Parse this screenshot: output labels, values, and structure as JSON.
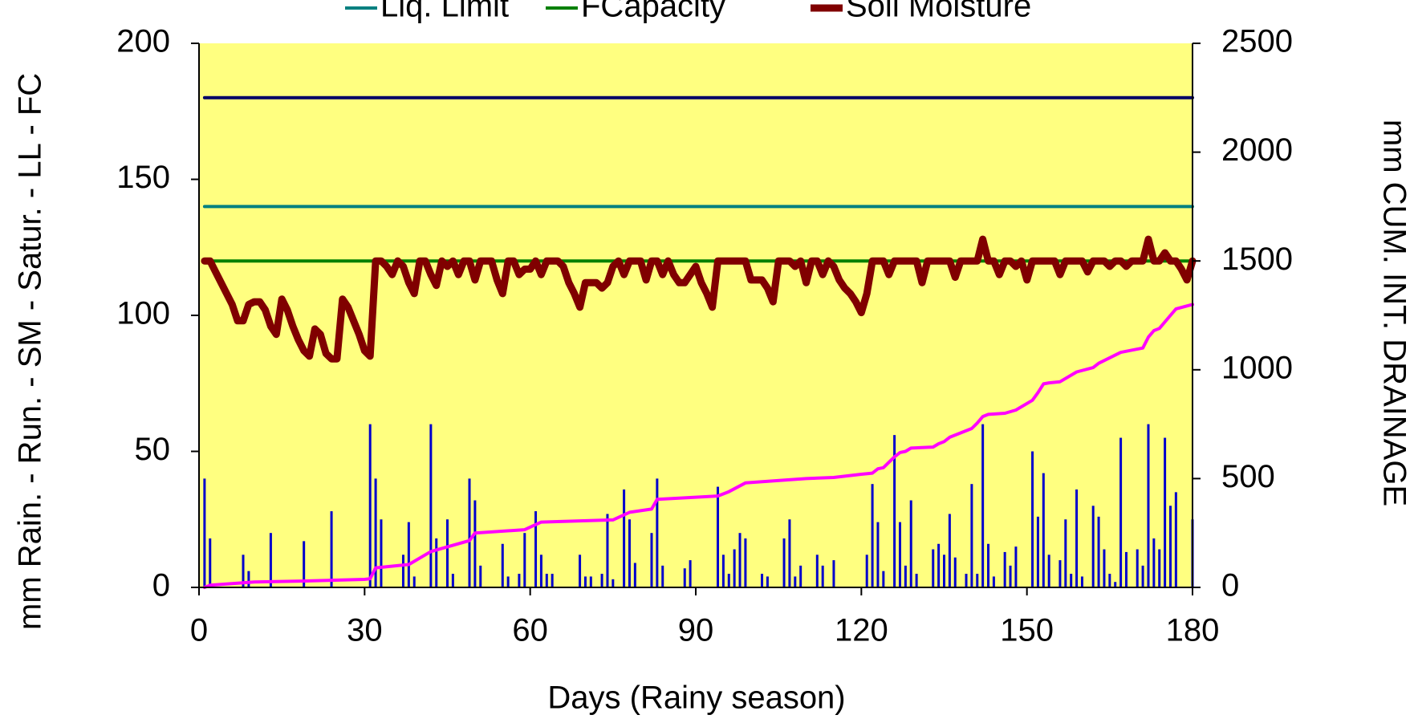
{
  "chart_data": {
    "type": "combo",
    "xlabel": "Days (Rainy season)",
    "ylabel": "mm Rain. - Run. - SM - Satur. - LL - FC",
    "y2label": "mm CUM. INT. DRAINAGE",
    "xlim": [
      0,
      180
    ],
    "xticks": [
      0,
      30,
      60,
      90,
      120,
      150,
      180
    ],
    "ylim": [
      0,
      200
    ],
    "yticks": [
      0,
      50,
      100,
      150,
      200
    ],
    "y2lim": [
      0,
      2500
    ],
    "y2ticks": [
      0,
      500,
      1000,
      1500,
      2000,
      2500
    ],
    "background": "#ffff80",
    "series": [
      {
        "type": "bar",
        "color": "#0000cc",
        "x": [
          1,
          2,
          8,
          9,
          13,
          19,
          24,
          31,
          32,
          33,
          37,
          38,
          39,
          42,
          43,
          45,
          46,
          49,
          50,
          51,
          55,
          56,
          58,
          59,
          61,
          62,
          63,
          64,
          69,
          70,
          71,
          73,
          74,
          75,
          77,
          78,
          79,
          82,
          83,
          84,
          88,
          89,
          94,
          95,
          96,
          97,
          98,
          99,
          102,
          103,
          106,
          107,
          108,
          109,
          112,
          113,
          115,
          121,
          122,
          123,
          124,
          126,
          127,
          128,
          129,
          130,
          133,
          134,
          135,
          136,
          137,
          139,
          140,
          141,
          142,
          143,
          144,
          146,
          147,
          148,
          151,
          152,
          153,
          154,
          156,
          157,
          158,
          159,
          160,
          162,
          163,
          164,
          165,
          166,
          167,
          168,
          170,
          171,
          172,
          173,
          174,
          175,
          176,
          177,
          180
        ],
        "values": [
          40,
          18,
          12,
          6,
          20,
          17,
          28,
          60,
          40,
          25,
          12,
          24,
          4,
          60,
          18,
          25,
          5,
          40,
          32,
          8,
          16,
          4,
          5,
          20,
          28,
          12,
          5,
          5,
          12,
          4,
          4,
          5,
          27,
          3,
          36,
          25,
          9,
          20,
          40,
          8,
          7,
          10,
          37,
          12,
          5,
          14,
          20,
          18,
          5,
          4,
          18,
          25,
          4,
          8,
          12,
          8,
          10,
          12,
          38,
          24,
          6,
          56,
          24,
          8,
          32,
          5,
          14,
          16,
          12,
          27,
          11,
          5,
          38,
          5,
          60,
          16,
          4,
          13,
          8,
          15,
          50,
          26,
          42,
          12,
          10,
          25,
          5,
          36,
          4,
          30,
          26,
          14,
          5,
          2,
          55,
          13,
          14,
          8,
          60,
          18,
          14,
          55,
          30,
          35,
          25
        ]
      },
      {
        "type": "line",
        "color": "#ff00ff",
        "axis": "y2",
        "width": 4,
        "x": [
          1,
          2,
          10,
          20,
          30,
          31,
          32,
          38,
          42,
          49,
          50,
          59,
          62,
          75,
          78,
          82,
          83,
          94,
          96,
          99,
          110,
          115,
          120,
          122,
          123,
          124,
          126,
          127,
          128,
          129,
          133,
          134,
          135,
          136,
          140,
          141,
          142,
          143,
          146,
          148,
          151,
          152,
          153,
          154,
          156,
          159,
          162,
          163,
          167,
          171,
          172,
          173,
          174,
          176,
          177,
          180
        ],
        "values": [
          0,
          10,
          25,
          30,
          37,
          40,
          90,
          105,
          165,
          215,
          250,
          265,
          300,
          310,
          345,
          360,
          405,
          420,
          440,
          480,
          500,
          505,
          520,
          525,
          545,
          550,
          600,
          620,
          625,
          640,
          645,
          660,
          670,
          690,
          730,
          755,
          785,
          795,
          800,
          815,
          860,
          895,
          935,
          940,
          945,
          990,
          1010,
          1030,
          1080,
          1100,
          1150,
          1180,
          1190,
          1250,
          1280,
          1300
        ]
      },
      {
        "type": "line",
        "color": "#000066",
        "width": 4,
        "x": [
          1,
          180
        ],
        "values": [
          180,
          180
        ]
      },
      {
        "name": "Liq. Limit",
        "type": "line",
        "color": "#008080",
        "width": 4,
        "x": [
          1,
          180
        ],
        "values": [
          140,
          140
        ]
      },
      {
        "name": "FCapacity",
        "type": "line",
        "color": "#008000",
        "width": 4,
        "x": [
          1,
          180
        ],
        "values": [
          120,
          120
        ]
      },
      {
        "name": "Soil Moisture",
        "type": "line",
        "color": "#800000",
        "width": 9,
        "x": [
          1,
          2,
          3,
          4,
          5,
          6,
          7,
          8,
          9,
          10,
          11,
          12,
          13,
          14,
          15,
          16,
          17,
          18,
          19,
          20,
          21,
          22,
          23,
          24,
          25,
          26,
          27,
          28,
          29,
          30,
          31,
          32,
          33,
          34,
          35,
          36,
          37,
          38,
          39,
          40,
          41,
          42,
          43,
          44,
          45,
          46,
          47,
          48,
          49,
          50,
          51,
          52,
          53,
          54,
          55,
          56,
          57,
          58,
          59,
          60,
          61,
          62,
          63,
          64,
          65,
          66,
          67,
          68,
          69,
          70,
          71,
          72,
          73,
          74,
          75,
          76,
          77,
          78,
          79,
          80,
          81,
          82,
          83,
          84,
          85,
          86,
          87,
          88,
          89,
          90,
          91,
          92,
          93,
          94,
          95,
          96,
          97,
          98,
          99,
          100,
          101,
          102,
          103,
          104,
          105,
          106,
          107,
          108,
          109,
          110,
          111,
          112,
          113,
          114,
          115,
          116,
          117,
          118,
          119,
          120,
          121,
          122,
          123,
          124,
          125,
          126,
          127,
          128,
          129,
          130,
          131,
          132,
          133,
          134,
          135,
          136,
          137,
          138,
          139,
          140,
          141,
          142,
          143,
          144,
          145,
          146,
          147,
          148,
          149,
          150,
          151,
          152,
          153,
          154,
          155,
          156,
          157,
          158,
          159,
          160,
          161,
          162,
          163,
          164,
          165,
          166,
          167,
          168,
          169,
          170,
          171,
          172,
          173,
          174,
          175,
          176,
          177,
          178,
          179,
          180
        ],
        "values": [
          120,
          120,
          116,
          112,
          108,
          104,
          98,
          98,
          104,
          105,
          105,
          102,
          96,
          93,
          106,
          102,
          96,
          91,
          87,
          85,
          95,
          93,
          86,
          84,
          84,
          106,
          103,
          98,
          93,
          87,
          85,
          120,
          120,
          118,
          115,
          120,
          118,
          112,
          108,
          120,
          120,
          115,
          111,
          120,
          118,
          120,
          115,
          120,
          120,
          113,
          120,
          120,
          120,
          113,
          108,
          120,
          120,
          115,
          117,
          117,
          120,
          115,
          120,
          120,
          120,
          118,
          112,
          108,
          103,
          112,
          112,
          112,
          110,
          112,
          118,
          120,
          115,
          120,
          120,
          120,
          113,
          120,
          120,
          115,
          120,
          115,
          112,
          112,
          115,
          118,
          112,
          108,
          103,
          120,
          120,
          120,
          120,
          120,
          120,
          113,
          113,
          113,
          110,
          105,
          120,
          120,
          120,
          118,
          120,
          112,
          120,
          120,
          115,
          120,
          118,
          113,
          110,
          108,
          105,
          101,
          108,
          120,
          120,
          120,
          115,
          120,
          120,
          120,
          120,
          120,
          112,
          120,
          120,
          120,
          120,
          120,
          114,
          120,
          120,
          120,
          120,
          128,
          120,
          120,
          115,
          120,
          120,
          118,
          120,
          113,
          120,
          120,
          120,
          120,
          120,
          115,
          120,
          120,
          120,
          120,
          116,
          120,
          120,
          120,
          118,
          120,
          120,
          118,
          120,
          120,
          120,
          128,
          120,
          120,
          123,
          120,
          120,
          117,
          113,
          120
        ]
      }
    ]
  }
}
